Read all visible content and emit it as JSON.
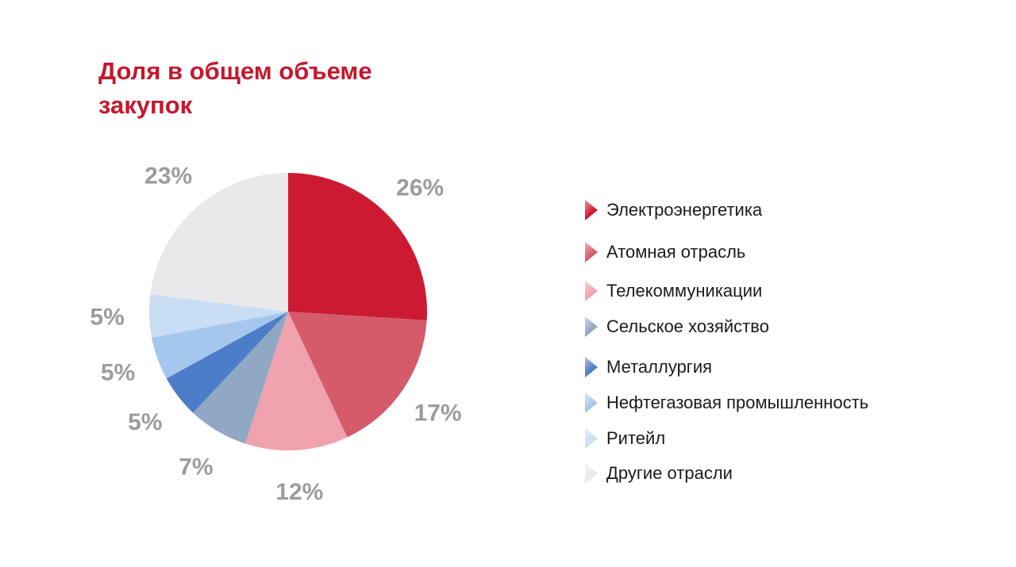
{
  "title": {
    "text": "Доля в общем объеме закупок",
    "color": "#C4182E"
  },
  "chart_data": {
    "type": "pie",
    "title": "Доля в общем объеме закупок",
    "start_angle_deg": 0,
    "direction": "clockwise",
    "total": 100,
    "label_color": "#9C9CA0",
    "legend_position": "right",
    "slices": [
      {
        "label": "Электроэнергетика",
        "value": 26,
        "display": "26%",
        "color": "#CC1A33"
      },
      {
        "label": "Атомная отрасль",
        "value": 17,
        "display": "17%",
        "color": "#D55A6A"
      },
      {
        "label": "Телекоммуникации",
        "value": 12,
        "display": "12%",
        "color": "#EFA2AE"
      },
      {
        "label": "Сельское хозяйство",
        "value": 7,
        "display": "7%",
        "color": "#91A8C5"
      },
      {
        "label": "Металлургия",
        "value": 5,
        "display": "5%",
        "color": "#4C7DC8"
      },
      {
        "label": "Нефтегазовая промышленность",
        "value": 5,
        "display": "5%",
        "color": "#A6C7ED"
      },
      {
        "label": "Ритейл",
        "value": 5,
        "display": "5%",
        "color": "#C9DDF4"
      },
      {
        "label": "Другие отрасли",
        "value": 23,
        "display": "23%",
        "color": "#E9E9EB"
      }
    ]
  }
}
